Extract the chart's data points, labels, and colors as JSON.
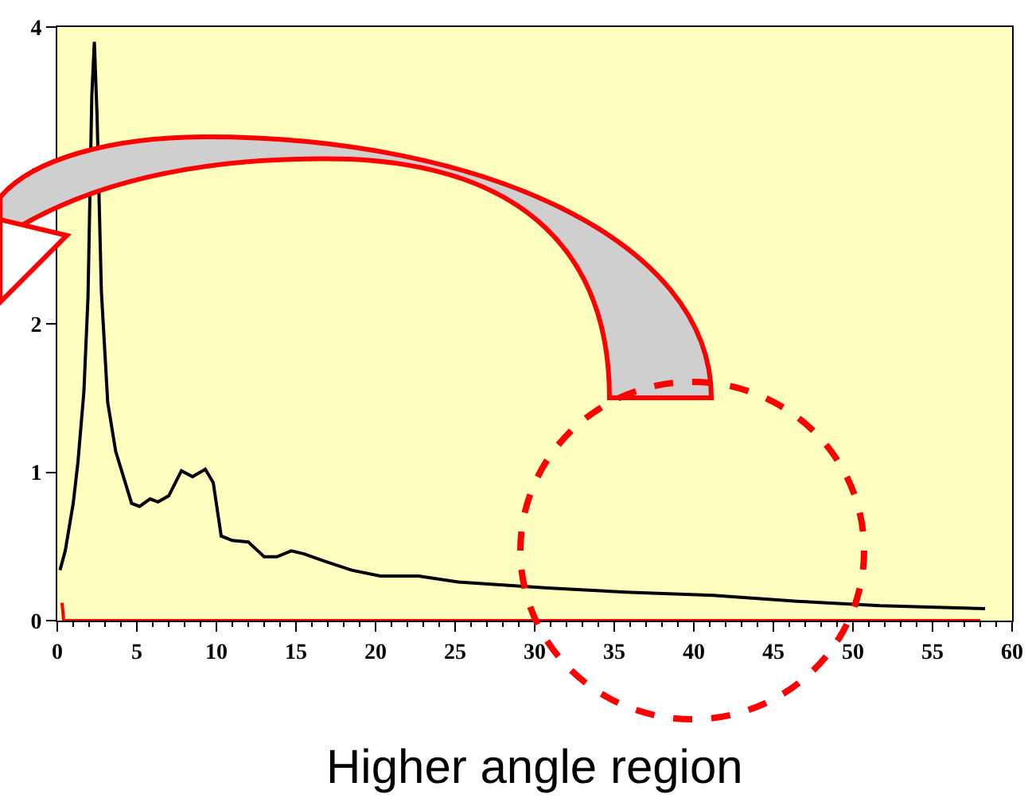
{
  "chart_data": {
    "type": "line",
    "annotations": [
      "Higher angle region"
    ],
    "series": [
      {
        "color": "#000000",
        "x": [
          0.17,
          0.5,
          1.0,
          1.3,
          1.67,
          1.93,
          2.17,
          2.33,
          2.5,
          2.77,
          3.17,
          3.67,
          4.67,
          5.17,
          5.83,
          6.33,
          7.0,
          7.8,
          8.5,
          9.3,
          9.8,
          10.3,
          11.0,
          12.0,
          13.0,
          13.8,
          14.7,
          15.5,
          16.8,
          18.5,
          20.3,
          22.7,
          25.2,
          30.8,
          36,
          41.2,
          46.5,
          51.7,
          58.3
        ],
        "values": [
          0.34,
          0.47,
          0.79,
          1.07,
          1.54,
          2.18,
          3.54,
          3.9,
          3.4,
          2.22,
          1.47,
          1.14,
          0.79,
          0.77,
          0.82,
          0.8,
          0.84,
          1.01,
          0.97,
          1.02,
          0.93,
          0.57,
          0.54,
          0.53,
          0.43,
          0.43,
          0.47,
          0.45,
          0.4,
          0.34,
          0.3,
          0.3,
          0.26,
          0.22,
          0.19,
          0.17,
          0.13,
          0.1,
          0.08
        ]
      },
      {
        "color": "#ff0000",
        "x": [
          0.3,
          0.4,
          58
        ],
        "values": [
          0.12,
          0,
          0
        ]
      }
    ],
    "xlim": [
      0,
      60
    ],
    "xticks": [
      0,
      5,
      10,
      15,
      20,
      25,
      30,
      35,
      40,
      45,
      50,
      55,
      60
    ],
    "ylim": [
      0,
      4
    ],
    "yticks": [
      0,
      1,
      2,
      3,
      4
    ],
    "grid": false,
    "marker": "none",
    "line_style": "solid"
  }
}
